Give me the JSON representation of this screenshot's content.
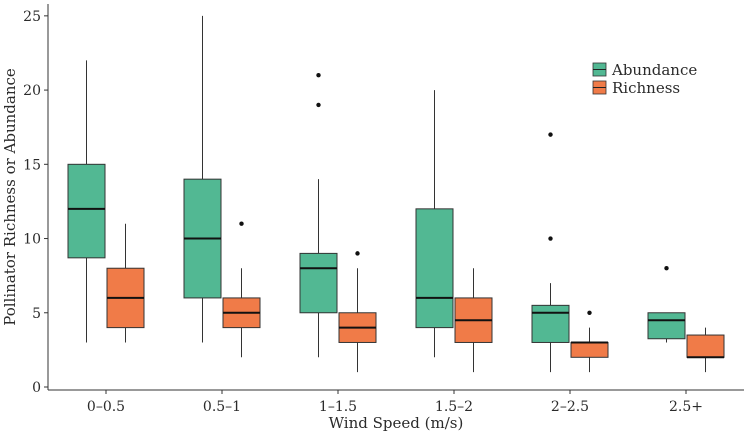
{
  "chart_data": {
    "type": "boxplot",
    "title": "",
    "xlabel": "Wind Speed (m/s)",
    "ylabel": "Pollinator Richness or Abundance",
    "ylim": [
      0,
      26
    ],
    "yticks": [
      0,
      5,
      10,
      15,
      20,
      25
    ],
    "categories": [
      "0–0.5",
      "0.5–1",
      "1–1.5",
      "1.5–2",
      "2–2.5",
      "2.5+"
    ],
    "legend_position": "top-right",
    "series": [
      {
        "name": "Abundance",
        "color": "#52b893",
        "boxes": [
          {
            "whisker_low": 3,
            "q1": 8.7,
            "median": 12,
            "q3": 15,
            "whisker_high": 22,
            "outliers": []
          },
          {
            "whisker_low": 3,
            "q1": 6,
            "median": 10,
            "q3": 14,
            "whisker_high": 25,
            "outliers": []
          },
          {
            "whisker_low": 2,
            "q1": 5,
            "median": 8,
            "q3": 9,
            "whisker_high": 14,
            "outliers": [
              19,
              21
            ]
          },
          {
            "whisker_low": 2,
            "q1": 4,
            "median": 6,
            "q3": 12,
            "whisker_high": 20,
            "outliers": []
          },
          {
            "whisker_low": 1,
            "q1": 3,
            "median": 5,
            "q3": 5.5,
            "whisker_high": 7,
            "outliers": [
              10,
              17
            ]
          },
          {
            "whisker_low": 3,
            "q1": 3.25,
            "median": 4.5,
            "q3": 5,
            "whisker_high": 5,
            "outliers": [
              8
            ]
          }
        ]
      },
      {
        "name": "Richness",
        "color": "#f07b48",
        "boxes": [
          {
            "whisker_low": 3,
            "q1": 4,
            "median": 6,
            "q3": 8,
            "whisker_high": 11,
            "outliers": []
          },
          {
            "whisker_low": 2,
            "q1": 4,
            "median": 5,
            "q3": 6,
            "whisker_high": 8,
            "outliers": [
              11
            ]
          },
          {
            "whisker_low": 1,
            "q1": 3,
            "median": 4,
            "q3": 5,
            "whisker_high": 8,
            "outliers": [
              9
            ]
          },
          {
            "whisker_low": 1,
            "q1": 3,
            "median": 4.5,
            "q3": 6,
            "whisker_high": 8,
            "outliers": []
          },
          {
            "whisker_low": 1,
            "q1": 2,
            "median": 3,
            "q3": 3,
            "whisker_high": 4,
            "outliers": [
              5
            ]
          },
          {
            "whisker_low": 1,
            "q1": 2,
            "median": 2,
            "q3": 3.5,
            "whisker_high": 4,
            "outliers": []
          }
        ]
      }
    ]
  }
}
